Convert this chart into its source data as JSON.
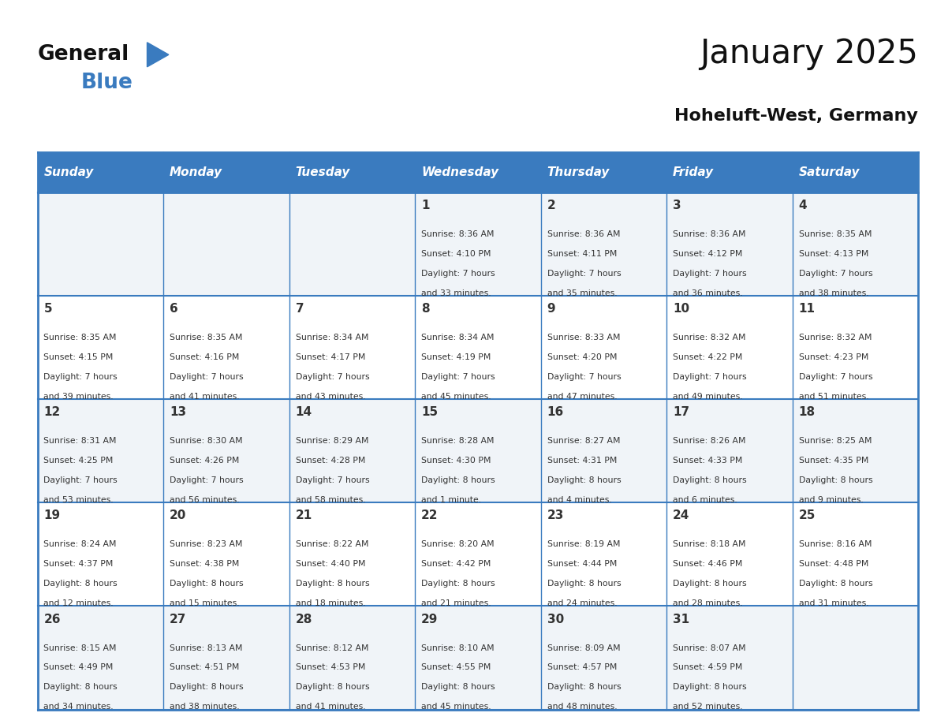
{
  "title": "January 2025",
  "subtitle": "Hoheluft-West, Germany",
  "days_of_week": [
    "Sunday",
    "Monday",
    "Tuesday",
    "Wednesday",
    "Thursday",
    "Friday",
    "Saturday"
  ],
  "header_bg": "#3a7bbf",
  "header_text": "#ffffff",
  "row_bg_odd": "#f0f4f8",
  "row_bg_even": "#ffffff",
  "grid_line_color": "#3a7bbf",
  "day_num_color": "#333333",
  "cell_text_color": "#333333",
  "title_color": "#111111",
  "subtitle_color": "#111111",
  "calendar": [
    [
      {
        "day": null,
        "sunrise": null,
        "sunset": null,
        "daylight": null
      },
      {
        "day": null,
        "sunrise": null,
        "sunset": null,
        "daylight": null
      },
      {
        "day": null,
        "sunrise": null,
        "sunset": null,
        "daylight": null
      },
      {
        "day": 1,
        "sunrise": "8:36 AM",
        "sunset": "4:10 PM",
        "daylight": "7 hours\nand 33 minutes."
      },
      {
        "day": 2,
        "sunrise": "8:36 AM",
        "sunset": "4:11 PM",
        "daylight": "7 hours\nand 35 minutes."
      },
      {
        "day": 3,
        "sunrise": "8:36 AM",
        "sunset": "4:12 PM",
        "daylight": "7 hours\nand 36 minutes."
      },
      {
        "day": 4,
        "sunrise": "8:35 AM",
        "sunset": "4:13 PM",
        "daylight": "7 hours\nand 38 minutes."
      }
    ],
    [
      {
        "day": 5,
        "sunrise": "8:35 AM",
        "sunset": "4:15 PM",
        "daylight": "7 hours\nand 39 minutes."
      },
      {
        "day": 6,
        "sunrise": "8:35 AM",
        "sunset": "4:16 PM",
        "daylight": "7 hours\nand 41 minutes."
      },
      {
        "day": 7,
        "sunrise": "8:34 AM",
        "sunset": "4:17 PM",
        "daylight": "7 hours\nand 43 minutes."
      },
      {
        "day": 8,
        "sunrise": "8:34 AM",
        "sunset": "4:19 PM",
        "daylight": "7 hours\nand 45 minutes."
      },
      {
        "day": 9,
        "sunrise": "8:33 AM",
        "sunset": "4:20 PM",
        "daylight": "7 hours\nand 47 minutes."
      },
      {
        "day": 10,
        "sunrise": "8:32 AM",
        "sunset": "4:22 PM",
        "daylight": "7 hours\nand 49 minutes."
      },
      {
        "day": 11,
        "sunrise": "8:32 AM",
        "sunset": "4:23 PM",
        "daylight": "7 hours\nand 51 minutes."
      }
    ],
    [
      {
        "day": 12,
        "sunrise": "8:31 AM",
        "sunset": "4:25 PM",
        "daylight": "7 hours\nand 53 minutes."
      },
      {
        "day": 13,
        "sunrise": "8:30 AM",
        "sunset": "4:26 PM",
        "daylight": "7 hours\nand 56 minutes."
      },
      {
        "day": 14,
        "sunrise": "8:29 AM",
        "sunset": "4:28 PM",
        "daylight": "7 hours\nand 58 minutes."
      },
      {
        "day": 15,
        "sunrise": "8:28 AM",
        "sunset": "4:30 PM",
        "daylight": "8 hours\nand 1 minute."
      },
      {
        "day": 16,
        "sunrise": "8:27 AM",
        "sunset": "4:31 PM",
        "daylight": "8 hours\nand 4 minutes."
      },
      {
        "day": 17,
        "sunrise": "8:26 AM",
        "sunset": "4:33 PM",
        "daylight": "8 hours\nand 6 minutes."
      },
      {
        "day": 18,
        "sunrise": "8:25 AM",
        "sunset": "4:35 PM",
        "daylight": "8 hours\nand 9 minutes."
      }
    ],
    [
      {
        "day": 19,
        "sunrise": "8:24 AM",
        "sunset": "4:37 PM",
        "daylight": "8 hours\nand 12 minutes."
      },
      {
        "day": 20,
        "sunrise": "8:23 AM",
        "sunset": "4:38 PM",
        "daylight": "8 hours\nand 15 minutes."
      },
      {
        "day": 21,
        "sunrise": "8:22 AM",
        "sunset": "4:40 PM",
        "daylight": "8 hours\nand 18 minutes."
      },
      {
        "day": 22,
        "sunrise": "8:20 AM",
        "sunset": "4:42 PM",
        "daylight": "8 hours\nand 21 minutes."
      },
      {
        "day": 23,
        "sunrise": "8:19 AM",
        "sunset": "4:44 PM",
        "daylight": "8 hours\nand 24 minutes."
      },
      {
        "day": 24,
        "sunrise": "8:18 AM",
        "sunset": "4:46 PM",
        "daylight": "8 hours\nand 28 minutes."
      },
      {
        "day": 25,
        "sunrise": "8:16 AM",
        "sunset": "4:48 PM",
        "daylight": "8 hours\nand 31 minutes."
      }
    ],
    [
      {
        "day": 26,
        "sunrise": "8:15 AM",
        "sunset": "4:49 PM",
        "daylight": "8 hours\nand 34 minutes."
      },
      {
        "day": 27,
        "sunrise": "8:13 AM",
        "sunset": "4:51 PM",
        "daylight": "8 hours\nand 38 minutes."
      },
      {
        "day": 28,
        "sunrise": "8:12 AM",
        "sunset": "4:53 PM",
        "daylight": "8 hours\nand 41 minutes."
      },
      {
        "day": 29,
        "sunrise": "8:10 AM",
        "sunset": "4:55 PM",
        "daylight": "8 hours\nand 45 minutes."
      },
      {
        "day": 30,
        "sunrise": "8:09 AM",
        "sunset": "4:57 PM",
        "daylight": "8 hours\nand 48 minutes."
      },
      {
        "day": 31,
        "sunrise": "8:07 AM",
        "sunset": "4:59 PM",
        "daylight": "8 hours\nand 52 minutes."
      },
      {
        "day": null,
        "sunrise": null,
        "sunset": null,
        "daylight": null
      }
    ]
  ]
}
